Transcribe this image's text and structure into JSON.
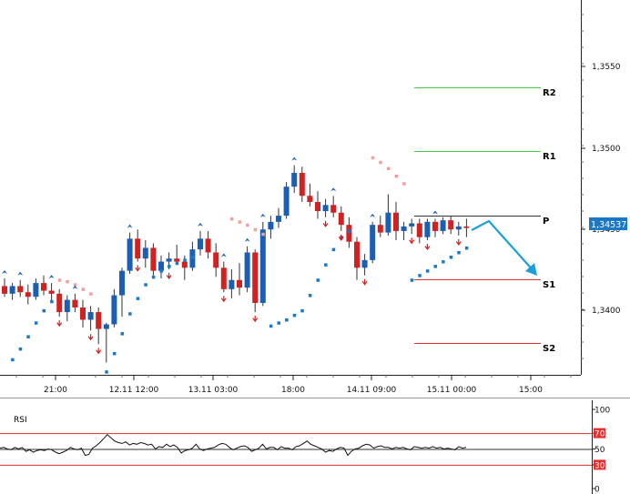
{
  "chart_data": [
    {
      "type": "candlestick",
      "price_axis": {
        "ticks": [
          "1,3550",
          "1,3500",
          "1,3450",
          "1,3400"
        ],
        "ylim": [
          1.3358,
          1.3603
        ],
        "current_price": "1,34537"
      },
      "time_axis": {
        "ticks": [
          "21:00",
          "12.11 12:00",
          "13.11 03:00",
          "18:00",
          "14.11 09:00",
          "15.11 00:00",
          "15:00"
        ]
      },
      "pivot_levels": [
        {
          "name": "R2",
          "value": 1.3538,
          "color": "#44cc44"
        },
        {
          "name": "R1",
          "value": 1.3498,
          "color": "#44cc44"
        },
        {
          "name": "P",
          "value": 1.3457,
          "color": "#333333"
        },
        {
          "name": "S1",
          "value": 1.3418,
          "color": "#e03030"
        },
        {
          "name": "S2",
          "value": 1.3378,
          "color": "#e03030"
        }
      ],
      "candles": [
        [
          1.3416,
          1.3421,
          1.3409,
          1.3411
        ],
        [
          1.3411,
          1.3418,
          1.3407,
          1.3416
        ],
        [
          1.3416,
          1.342,
          1.3409,
          1.3412
        ],
        [
          1.3412,
          1.3417,
          1.3404,
          1.3409
        ],
        [
          1.3409,
          1.3421,
          1.3407,
          1.3418
        ],
        [
          1.3418,
          1.3423,
          1.341,
          1.3413
        ],
        [
          1.3413,
          1.3418,
          1.3405,
          1.3411
        ],
        [
          1.3411,
          1.3414,
          1.3396,
          1.3399
        ],
        [
          1.3399,
          1.341,
          1.3393,
          1.3407
        ],
        [
          1.3407,
          1.3411,
          1.3399,
          1.3402
        ],
        [
          1.3402,
          1.3407,
          1.3389,
          1.3394
        ],
        [
          1.3394,
          1.3403,
          1.3387,
          1.3399
        ],
        [
          1.3399,
          1.3402,
          1.3378,
          1.3388
        ],
        [
          1.3388,
          1.3392,
          1.3366,
          1.3391
        ],
        [
          1.3391,
          1.3414,
          1.3389,
          1.341
        ],
        [
          1.341,
          1.3428,
          1.3396,
          1.3426
        ],
        [
          1.3426,
          1.3451,
          1.3424,
          1.3447
        ],
        [
          1.3447,
          1.3453,
          1.3432,
          1.3434
        ],
        [
          1.3434,
          1.3446,
          1.3428,
          1.3441
        ],
        [
          1.3441,
          1.3444,
          1.3423,
          1.3426
        ],
        [
          1.3426,
          1.3436,
          1.3421,
          1.3432
        ],
        [
          1.3432,
          1.3438,
          1.3427,
          1.3434
        ],
        [
          1.3434,
          1.3443,
          1.343,
          1.3432
        ],
        [
          1.3432,
          1.3436,
          1.342,
          1.3428
        ],
        [
          1.3428,
          1.3445,
          1.3426,
          1.344
        ],
        [
          1.344,
          1.3452,
          1.3436,
          1.3447
        ],
        [
          1.3447,
          1.3452,
          1.3434,
          1.3438
        ],
        [
          1.3438,
          1.3444,
          1.3422,
          1.3428
        ],
        [
          1.3428,
          1.3432,
          1.3412,
          1.3414
        ],
        [
          1.3414,
          1.3427,
          1.3408,
          1.342
        ],
        [
          1.342,
          1.3431,
          1.341,
          1.3415
        ],
        [
          1.3415,
          1.3442,
          1.3412,
          1.3438
        ],
        [
          1.3438,
          1.344,
          1.3399,
          1.3405
        ],
        [
          1.3405,
          1.3458,
          1.3403,
          1.3453
        ],
        [
          1.3453,
          1.3462,
          1.3447,
          1.3458
        ],
        [
          1.3458,
          1.3467,
          1.3454,
          1.3462
        ],
        [
          1.3462,
          1.3484,
          1.346,
          1.3481
        ],
        [
          1.3481,
          1.3495,
          1.3477,
          1.349
        ],
        [
          1.349,
          1.3494,
          1.3471,
          1.3475
        ],
        [
          1.3475,
          1.3483,
          1.3468,
          1.3471
        ],
        [
          1.3471,
          1.3478,
          1.346,
          1.3465
        ],
        [
          1.3465,
          1.3473,
          1.3461,
          1.3469
        ],
        [
          1.3469,
          1.3475,
          1.3461,
          1.3464
        ],
        [
          1.3464,
          1.3468,
          1.3452,
          1.3456
        ],
        [
          1.3456,
          1.3461,
          1.3441,
          1.3445
        ],
        [
          1.3445,
          1.3448,
          1.342,
          1.3428
        ],
        [
          1.3428,
          1.3437,
          1.3423,
          1.3433
        ],
        [
          1.3433,
          1.3458,
          1.3431,
          1.3456
        ],
        [
          1.3456,
          1.3462,
          1.3448,
          1.3451
        ],
        [
          1.3451,
          1.3476,
          1.3449,
          1.3464
        ],
        [
          1.3464,
          1.3471,
          1.3446,
          1.3452
        ],
        [
          1.3452,
          1.3458,
          1.3446,
          1.3455
        ],
        [
          1.3455,
          1.346,
          1.345,
          1.3457
        ],
        [
          1.3457,
          1.346,
          1.3444,
          1.3448
        ],
        [
          1.3448,
          1.346,
          1.3446,
          1.3458
        ],
        [
          1.3458,
          1.346,
          1.3448,
          1.3452
        ],
        [
          1.3452,
          1.3461,
          1.345,
          1.3459
        ],
        [
          1.3459,
          1.3462,
          1.345,
          1.3453
        ],
        [
          1.3453,
          1.3458,
          1.3449,
          1.3455
        ],
        [
          1.3455,
          1.346,
          1.3448,
          1.3454
        ]
      ],
      "sar_up": [
        [
          1,
          1.3368
        ],
        [
          2,
          1.3375
        ],
        [
          3,
          1.3383
        ],
        [
          4,
          1.3392
        ],
        [
          5,
          1.34
        ],
        [
          6,
          1.3406
        ],
        [
          13,
          1.336
        ],
        [
          14,
          1.3372
        ],
        [
          15,
          1.3385
        ],
        [
          16,
          1.3398
        ],
        [
          17,
          1.3408
        ],
        [
          18,
          1.3417
        ],
        [
          19,
          1.3422
        ],
        [
          20,
          1.3426
        ],
        [
          21,
          1.3429
        ],
        [
          22,
          1.3431
        ],
        [
          23,
          1.3433
        ],
        [
          24,
          1.3435
        ],
        [
          34,
          1.339
        ],
        [
          35,
          1.3392
        ],
        [
          36,
          1.3394
        ],
        [
          37,
          1.3397
        ],
        [
          38,
          1.34
        ],
        [
          39,
          1.341
        ],
        [
          40,
          1.342
        ],
        [
          41,
          1.343
        ],
        [
          42,
          1.344
        ],
        [
          43,
          1.3448
        ],
        [
          44,
          1.3452
        ],
        [
          52,
          1.342
        ],
        [
          53,
          1.3423
        ],
        [
          54,
          1.3426
        ],
        [
          55,
          1.3429
        ],
        [
          56,
          1.3432
        ],
        [
          57,
          1.3435
        ],
        [
          58,
          1.3438
        ],
        [
          59,
          1.3441
        ]
      ],
      "sar_down": [
        [
          7,
          1.342
        ],
        [
          8,
          1.3419
        ],
        [
          9,
          1.3417
        ],
        [
          10,
          1.3414
        ],
        [
          11,
          1.3411
        ],
        [
          29,
          1.346
        ],
        [
          30,
          1.3458
        ],
        [
          31,
          1.3456
        ],
        [
          32,
          1.3453
        ],
        [
          33,
          1.345
        ],
        [
          47,
          1.35
        ],
        [
          48,
          1.3497
        ],
        [
          49,
          1.3493
        ],
        [
          50,
          1.3488
        ],
        [
          51,
          1.3483
        ]
      ],
      "fractal_up": [
        0,
        2,
        6,
        9,
        16,
        25,
        28,
        31,
        33,
        37,
        42,
        47,
        55
      ],
      "fractal_down": [
        7,
        11,
        12,
        17,
        21,
        28,
        32,
        41,
        43,
        46,
        52,
        54,
        58
      ],
      "annotation": {
        "type": "arrow",
        "color": "#1a9fd6",
        "description": "projected move down to S1"
      }
    },
    {
      "type": "line",
      "title": "RSI",
      "axis_ticks": [
        "100",
        "70",
        "50",
        "30",
        "0"
      ],
      "ylim": [
        0,
        100
      ],
      "levels": [
        70,
        50,
        30
      ],
      "values": [
        51,
        52,
        50,
        49,
        52,
        50,
        52,
        47,
        49,
        46,
        48,
        49,
        48,
        50,
        49,
        46,
        44,
        46,
        48,
        52,
        50,
        49,
        51,
        42,
        43,
        51,
        54,
        58,
        63,
        68,
        64,
        60,
        58,
        57,
        59,
        55,
        57,
        56,
        58,
        57,
        55,
        56,
        50,
        53,
        52,
        56,
        53,
        55,
        52,
        45,
        48,
        49,
        51,
        56,
        50,
        48,
        50,
        51,
        52,
        55,
        57,
        56,
        52,
        49,
        51,
        53,
        54,
        52,
        47,
        49,
        51,
        56,
        50,
        52,
        52,
        49,
        53,
        51,
        51,
        49,
        53,
        54,
        57,
        60,
        56,
        54,
        52,
        50,
        46,
        48,
        47,
        50,
        52,
        51,
        42,
        47,
        50,
        51,
        54,
        56,
        55,
        51,
        53,
        54,
        52,
        52,
        50,
        52,
        51,
        52,
        50,
        49,
        53,
        52,
        51,
        52,
        51,
        53,
        51,
        52,
        50,
        51,
        50,
        49,
        53,
        51,
        52
      ]
    }
  ]
}
